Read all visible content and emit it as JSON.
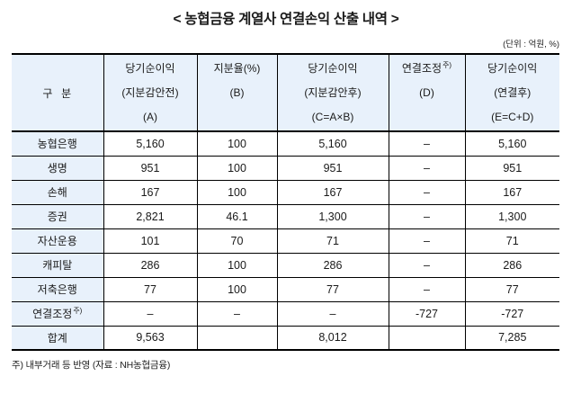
{
  "page": {
    "title": "< 농협금융 계열사 연결손익 산출 내역 >",
    "unit_note": "(단위 : 억원, %)",
    "footnote": "주) 내부거래 등 반영 (자료 : NH농협금융)"
  },
  "colors": {
    "header_bg": "#e8f1fb",
    "border": "#000000"
  },
  "table": {
    "header": {
      "col1": "구  분",
      "cols": [
        {
          "l1": "당기순이익",
          "sup": "",
          "l2": "(지분감안전)",
          "l3": "(A)"
        },
        {
          "l1": "지분율(%)",
          "sup": "",
          "l2": "(B)",
          "l3": ""
        },
        {
          "l1": "당기순이익",
          "sup": "",
          "l2": "(지분감안후)",
          "l3": "(C=A×B)"
        },
        {
          "l1": "연결조정",
          "sup": "주)",
          "l2": "(D)",
          "l3": ""
        },
        {
          "l1": "당기순이익",
          "sup": "",
          "l2": "(연결후)",
          "l3": "(E=C+D)"
        }
      ]
    },
    "rows": [
      {
        "label": "농협은행",
        "sup": "",
        "values": [
          "5,160",
          "100",
          "5,160",
          "–",
          "5,160"
        ]
      },
      {
        "label": "생명",
        "sup": "",
        "values": [
          "951",
          "100",
          "951",
          "–",
          "951"
        ]
      },
      {
        "label": "손해",
        "sup": "",
        "values": [
          "167",
          "100",
          "167",
          "–",
          "167"
        ]
      },
      {
        "label": "증권",
        "sup": "",
        "values": [
          "2,821",
          "46.1",
          "1,300",
          "–",
          "1,300"
        ]
      },
      {
        "label": "자산운용",
        "sup": "",
        "values": [
          "101",
          "70",
          "71",
          "–",
          "71"
        ]
      },
      {
        "label": "캐피탈",
        "sup": "",
        "values": [
          "286",
          "100",
          "286",
          "–",
          "286"
        ]
      },
      {
        "label": "저축은행",
        "sup": "",
        "values": [
          "77",
          "100",
          "77",
          "–",
          "77"
        ]
      },
      {
        "label": "연결조정",
        "sup": "주)",
        "values": [
          "–",
          "–",
          "–",
          "-727",
          "-727"
        ]
      },
      {
        "label": "합계",
        "sup": "",
        "values": [
          "9,563",
          "",
          "8,012",
          "",
          "7,285"
        ]
      }
    ]
  }
}
